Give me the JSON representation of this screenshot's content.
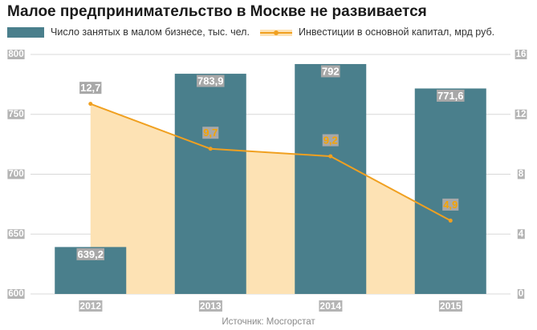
{
  "title": "Малое предпринимательство в Москве не развивается",
  "source": "Источник: Мосгорстат",
  "legend": {
    "bar_label": "Число занятых в малом бизнесе, тыс. чел.",
    "line_label": "Инвестиции в основной капитал, мрд руб."
  },
  "colors": {
    "bar": "#4a7f8c",
    "line": "#f0a020",
    "area": "#fde2b4",
    "grid": "#d8d8d8",
    "tick_label_bg": "#b4b4b4",
    "data_label_bg": "#a8a8a8"
  },
  "chart_data": {
    "type": "bar",
    "categories": [
      "2012",
      "2013",
      "2014",
      "2015"
    ],
    "series": [
      {
        "name": "Число занятых в малом бизнесе, тыс. чел.",
        "type": "bar",
        "axis": "left",
        "values": [
          639.2,
          783.9,
          792,
          771.6
        ],
        "labels": [
          "639,2",
          "783,9",
          "792",
          "771,6"
        ]
      },
      {
        "name": "Инвестиции в основной капитал, мрд руб.",
        "type": "line",
        "axis": "right",
        "values": [
          12.7,
          9.7,
          9.2,
          4.9
        ],
        "labels": [
          "12,7",
          "9,7",
          "9,2",
          "4,9"
        ]
      }
    ],
    "y_left": {
      "ylim": [
        600,
        800
      ],
      "ticks": [
        "600",
        "650",
        "700",
        "750",
        "800"
      ]
    },
    "y_right": {
      "ylim": [
        0,
        16
      ],
      "ticks": [
        "0",
        "4",
        "8",
        "12",
        "16"
      ]
    },
    "grid": true,
    "legend_position": "top"
  }
}
